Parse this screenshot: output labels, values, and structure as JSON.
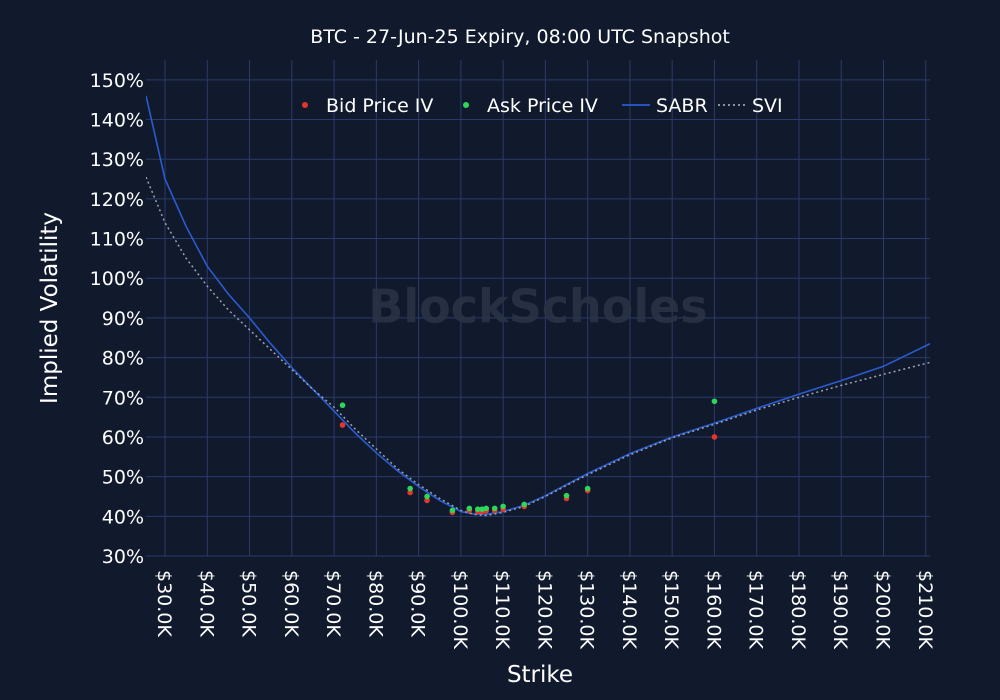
{
  "colors": {
    "background": "#111a2d",
    "grid": "#2a3a6a",
    "text": "#ffffff",
    "bid": "#e8352b",
    "ask": "#2ed65a",
    "sabr": "#2a5bd0",
    "svi": "#9aa3ad",
    "watermark": "#2a3346"
  },
  "watermark": "BlockScholes",
  "chart_data": {
    "type": "scatter",
    "title": "BTC - 27-Jun-25 Expiry, 08:00 UTC Snapshot",
    "xlabel": "Strike",
    "ylabel": "Implied Volatility",
    "xlim": [
      25.5,
      211
    ],
    "ylim": [
      30,
      155
    ],
    "grid": true,
    "legend_position": "top-center",
    "x_ticks": [
      30,
      40,
      50,
      60,
      70,
      80,
      90,
      100,
      110,
      120,
      130,
      140,
      150,
      160,
      170,
      180,
      190,
      200,
      210
    ],
    "x_tick_labels": [
      "$30.0K",
      "$40.0K",
      "$50.0K",
      "$60.0K",
      "$70.0K",
      "$80.0K",
      "$90.0K",
      "$100.0K",
      "$110.0K",
      "$120.0K",
      "$130.0K",
      "$140.0K",
      "$150.0K",
      "$160.0K",
      "$170.0K",
      "$180.0K",
      "$190.0K",
      "$200.0K",
      "$210.0K"
    ],
    "y_ticks": [
      30,
      40,
      50,
      60,
      70,
      80,
      90,
      100,
      110,
      120,
      130,
      140,
      150
    ],
    "y_tick_labels": [
      "30%",
      "40%",
      "50%",
      "60%",
      "70%",
      "80%",
      "90%",
      "100%",
      "110%",
      "120%",
      "130%",
      "140%",
      "150%"
    ],
    "series": [
      {
        "name": "Bid Price IV",
        "kind": "markers",
        "color": "#e8352b",
        "x": [
          72,
          88,
          92,
          98,
          102,
          104,
          105,
          106,
          108,
          110,
          115,
          125,
          130,
          160
        ],
        "y": [
          63,
          46,
          44,
          41,
          41.5,
          41.2,
          41.2,
          41.4,
          41.5,
          41.8,
          42.5,
          44.5,
          46.5,
          60
        ]
      },
      {
        "name": "Ask Price IV",
        "kind": "markers",
        "color": "#2ed65a",
        "x": [
          72,
          88,
          92,
          98,
          102,
          104,
          105,
          106,
          108,
          110,
          115,
          125,
          130,
          160
        ],
        "y": [
          68,
          47,
          45,
          41.5,
          42,
          41.8,
          41.8,
          42,
          42,
          42.5,
          43,
          45.2,
          47,
          69
        ]
      },
      {
        "name": "SABR",
        "kind": "line",
        "color": "#2a5bd0",
        "x": [
          25.5,
          30,
          35,
          40,
          45,
          50,
          55,
          60,
          65,
          70,
          75,
          80,
          85,
          90,
          95,
          100,
          103,
          106,
          110,
          115,
          120,
          125,
          130,
          140,
          150,
          160,
          170,
          180,
          190,
          200,
          211
        ],
        "y": [
          146,
          125,
          113,
          103,
          96,
          90,
          83.5,
          77.5,
          72,
          66.5,
          61,
          56,
          51.5,
          47.5,
          44,
          41.2,
          40.6,
          40.5,
          41.2,
          42.8,
          45.2,
          48,
          50.8,
          55.8,
          60,
          63.5,
          67.2,
          70.8,
          74.2,
          77.8,
          83.5
        ]
      },
      {
        "name": "SVI",
        "kind": "line",
        "color": "#9aa3ad",
        "x": [
          25.5,
          30,
          35,
          40,
          45,
          50,
          55,
          60,
          65,
          70,
          75,
          80,
          85,
          90,
          95,
          100,
          103,
          106,
          110,
          115,
          120,
          125,
          130,
          140,
          150,
          160,
          170,
          180,
          190,
          200,
          211
        ],
        "y": [
          125.5,
          114,
          105,
          98,
          92,
          87,
          82,
          77,
          72,
          67.5,
          62,
          57,
          52,
          48,
          44.5,
          41.5,
          40.5,
          40.2,
          41,
          42.5,
          45,
          47.8,
          50.5,
          55.5,
          59.8,
          63.2,
          66.8,
          70,
          73,
          75.8,
          78.8
        ]
      }
    ]
  }
}
